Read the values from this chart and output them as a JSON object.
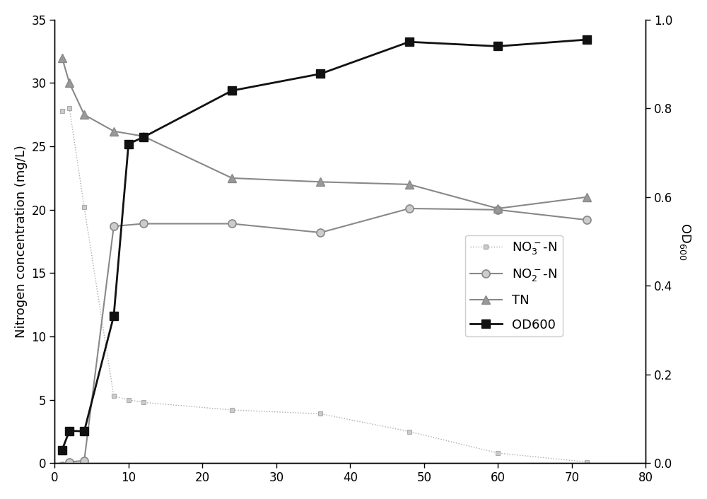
{
  "x_no3": [
    1,
    2,
    4,
    8,
    10,
    12,
    24,
    36,
    48,
    60,
    72
  ],
  "y_no3": [
    27.8,
    28.0,
    20.2,
    5.3,
    5.0,
    4.8,
    4.2,
    3.9,
    2.5,
    0.8,
    0.1
  ],
  "x_no2": [
    1,
    2,
    4,
    8,
    12,
    24,
    36,
    48,
    60,
    72
  ],
  "y_no2": [
    -0.2,
    0.1,
    0.2,
    18.7,
    18.9,
    18.9,
    18.2,
    20.1,
    20.0,
    19.2
  ],
  "x_tn": [
    1,
    2,
    4,
    8,
    12,
    24,
    36,
    48,
    60,
    72
  ],
  "y_tn": [
    32.0,
    30.0,
    27.5,
    26.2,
    25.8,
    22.5,
    22.2,
    22.0,
    20.1,
    21.0
  ],
  "x_od": [
    1,
    2,
    4,
    8,
    10,
    12,
    24,
    36,
    48,
    60,
    72
  ],
  "y_od": [
    0.03,
    0.073,
    0.072,
    0.332,
    0.72,
    0.735,
    0.84,
    0.878,
    0.95,
    0.94,
    0.955
  ],
  "color_no3": "#aaaaaa",
  "color_no2": "#888888",
  "color_tn": "#888888",
  "color_od": "#111111",
  "ylabel_left": "Nitrogen concentration (mg/L)",
  "ylabel_right": "OD$_{600}$",
  "xlim": [
    0,
    80
  ],
  "ylim_left": [
    0,
    35
  ],
  "ylim_right": [
    0.0,
    1.0
  ],
  "xticks": [
    0,
    10,
    20,
    30,
    40,
    50,
    60,
    70,
    80
  ],
  "yticks_left": [
    0,
    5,
    10,
    15,
    20,
    25,
    30,
    35
  ],
  "yticks_right": [
    0.0,
    0.2,
    0.4,
    0.6,
    0.8,
    1.0
  ],
  "legend_labels": [
    "NO$_3^-$-N",
    "NO$_2^-$-N",
    "TN",
    "OD600"
  ],
  "figsize": [
    10.0,
    7.06
  ],
  "dpi": 100
}
